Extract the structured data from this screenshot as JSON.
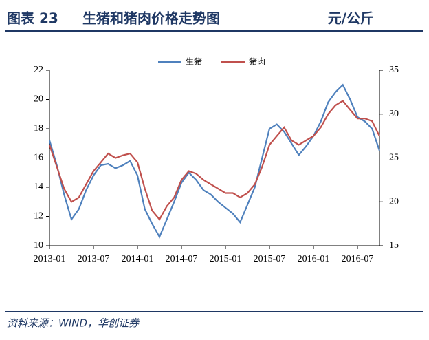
{
  "chart_data": {
    "type": "line",
    "figure_label": "图表 23",
    "title": "生猪和猪肉价格走势图",
    "unit": "元/公斤",
    "source": "资料来源：WIND，华创证券",
    "x": [
      "2013-01",
      "2013-02",
      "2013-03",
      "2013-04",
      "2013-05",
      "2013-06",
      "2013-07",
      "2013-08",
      "2013-09",
      "2013-10",
      "2013-11",
      "2013-12",
      "2014-01",
      "2014-02",
      "2014-03",
      "2014-04",
      "2014-05",
      "2014-06",
      "2014-07",
      "2014-08",
      "2014-09",
      "2014-10",
      "2014-11",
      "2014-12",
      "2015-01",
      "2015-02",
      "2015-03",
      "2015-04",
      "2015-05",
      "2015-06",
      "2015-07",
      "2015-08",
      "2015-09",
      "2015-10",
      "2015-11",
      "2015-12",
      "2016-01",
      "2016-02",
      "2016-03",
      "2016-04",
      "2016-05",
      "2016-06",
      "2016-07",
      "2016-08",
      "2016-09",
      "2016-10"
    ],
    "xticks": [
      "2013-01",
      "2013-07",
      "2014-01",
      "2014-07",
      "2015-01",
      "2015-07",
      "2016-01",
      "2016-07"
    ],
    "ylim": [
      10,
      22
    ],
    "yticks": [
      10,
      12,
      14,
      16,
      18,
      20,
      22
    ],
    "y2lim": [
      15,
      35
    ],
    "y2ticks": [
      15,
      20,
      25,
      30,
      35
    ],
    "legend": "top",
    "series": [
      {
        "name": "生猪",
        "color": "#4f81bd",
        "axis": "y",
        "values": [
          17.2,
          15.5,
          13.5,
          11.8,
          12.5,
          13.8,
          14.8,
          15.5,
          15.6,
          15.3,
          15.5,
          15.8,
          14.8,
          12.5,
          11.5,
          10.6,
          11.8,
          13.0,
          14.3,
          15.0,
          14.5,
          13.8,
          13.5,
          13.0,
          12.6,
          12.2,
          11.6,
          12.8,
          14.0,
          16.0,
          18.0,
          18.3,
          17.8,
          17.0,
          16.2,
          16.8,
          17.5,
          18.5,
          19.8,
          20.5,
          21.0,
          20.0,
          18.8,
          18.5,
          18.0,
          16.5
        ]
      },
      {
        "name": "猪肉",
        "color": "#c0504d",
        "axis": "y2",
        "values": [
          26.5,
          24,
          21.5,
          20,
          20.5,
          22,
          23.5,
          24.5,
          25.5,
          25,
          25.3,
          25.5,
          24.5,
          21.5,
          19,
          18,
          19.5,
          20.5,
          22.5,
          23.5,
          23.2,
          22.5,
          22,
          21.5,
          21,
          21,
          20.5,
          21,
          22,
          24,
          26.5,
          27.5,
          28.5,
          27,
          26.5,
          27,
          27.5,
          28.5,
          30,
          31,
          31.5,
          30.5,
          29.5,
          29.5,
          29.2,
          27.5
        ]
      }
    ]
  }
}
